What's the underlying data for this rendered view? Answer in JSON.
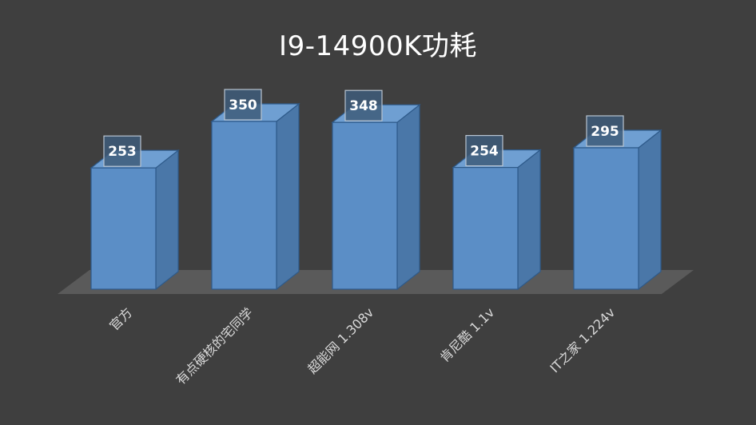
{
  "chart_data": {
    "type": "bar",
    "title": "I9-14900K功耗",
    "categories": [
      "官方",
      "有点硬核的宅同学",
      "超能网 1.308v",
      "肯尼酷 1.1v",
      "IT之家 1.224v"
    ],
    "values": [
      253,
      350,
      348,
      254,
      295
    ],
    "data_labels": [
      "253",
      "350",
      "348",
      "254",
      "295"
    ],
    "style": "3d-column",
    "grid": false,
    "legend": "none",
    "colors": {
      "background": "#3f3f3f",
      "bar_front": "#5b8ec6",
      "bar_side": "#4a77a8",
      "bar_top": "#6f9fd2",
      "bar_edge": "#2e5a8a",
      "floor": "#5a5a5a",
      "label_box": "#3e5c7a",
      "label_border": "#b8c4d0"
    }
  }
}
